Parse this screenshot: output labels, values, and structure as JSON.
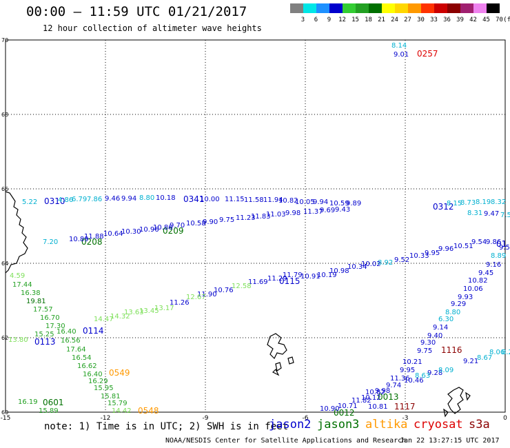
{
  "header": {
    "title": "00:00 – 11:59 UTC 01/21/2017",
    "subtitle": "12 hour collection of altimeter wave heights"
  },
  "legend": {
    "unit": "(ft)",
    "bins": [
      {
        "label": "3",
        "color": "#808080"
      },
      {
        "label": "6",
        "color": "#00e6e6"
      },
      {
        "label": "9",
        "color": "#1e90ff"
      },
      {
        "label": "12",
        "color": "#0000cd"
      },
      {
        "label": "15",
        "color": "#32cd32"
      },
      {
        "label": "18",
        "color": "#22a022"
      },
      {
        "label": "21",
        "color": "#007000"
      },
      {
        "label": "24",
        "color": "#ffff00"
      },
      {
        "label": "27",
        "color": "#ffd700"
      },
      {
        "label": "30",
        "color": "#ff9900"
      },
      {
        "label": "33",
        "color": "#ff3300"
      },
      {
        "label": "36",
        "color": "#cc0000"
      },
      {
        "label": "39",
        "color": "#8b0000"
      },
      {
        "label": "42",
        "color": "#a02070"
      },
      {
        "label": "45",
        "color": "#ee82ee"
      },
      {
        "label": "70",
        "color": "#000000"
      }
    ]
  },
  "axes": {
    "lon_ticks": [
      "-15",
      "-12",
      "-9",
      "-6",
      "-3",
      "0"
    ],
    "lat_ticks": [
      "70",
      "68",
      "66",
      "64",
      "62",
      "60"
    ]
  },
  "track_labels": [
    {
      "id": "t1",
      "text": "0257",
      "color": "#dd0000"
    },
    {
      "id": "t2",
      "text": "0310",
      "color": "#0000cd"
    },
    {
      "id": "t3",
      "text": "0341",
      "color": "#0000cd"
    },
    {
      "id": "t4",
      "text": "0208",
      "color": "#007000"
    },
    {
      "id": "t5",
      "text": "0209",
      "color": "#007000"
    },
    {
      "id": "t6",
      "text": "0115",
      "color": "#0000cd"
    },
    {
      "id": "t7",
      "text": "0114",
      "color": "#0000cd"
    },
    {
      "id": "t8",
      "text": "0113",
      "color": "#0000cd"
    },
    {
      "id": "t9",
      "text": "0549",
      "color": "#ff9900"
    },
    {
      "id": "t10",
      "text": "0548",
      "color": "#ff9900"
    },
    {
      "id": "t11",
      "text": "0601",
      "color": "#007000"
    },
    {
      "id": "t12",
      "text": "0012",
      "color": "#007000"
    },
    {
      "id": "t13",
      "text": "0013",
      "color": "#007000"
    },
    {
      "id": "t14",
      "text": "1116",
      "color": "#8b0000"
    },
    {
      "id": "t15",
      "text": "1117",
      "color": "#8b0000"
    },
    {
      "id": "t16",
      "text": "0312",
      "color": "#0000cd"
    },
    {
      "id": "t17",
      "text": "01",
      "color": "#0000cd"
    }
  ],
  "wave_values": [
    {
      "t": "8.14",
      "c": "#00b0d0"
    },
    {
      "t": "9.01",
      "c": "#0000cd"
    },
    {
      "t": "5.22",
      "c": "#00b0d0"
    },
    {
      "t": "4.86",
      "c": "#00b0d0"
    },
    {
      "t": "6.79",
      "c": "#00b0d0"
    },
    {
      "t": "7.86",
      "c": "#00b0d0"
    },
    {
      "t": "9.46",
      "c": "#0000cd"
    },
    {
      "t": "9.94",
      "c": "#0000cd"
    },
    {
      "t": "8.80",
      "c": "#00b0d0"
    },
    {
      "t": "10.18",
      "c": "#0000cd"
    },
    {
      "t": "10.00",
      "c": "#0000cd"
    },
    {
      "t": "11.15",
      "c": "#0000cd"
    },
    {
      "t": "11.58",
      "c": "#0000cd"
    },
    {
      "t": "11.94",
      "c": "#0000cd"
    },
    {
      "t": "10.82",
      "c": "#0000cd"
    },
    {
      "t": "10.05",
      "c": "#0000cd"
    },
    {
      "t": "9.94",
      "c": "#0000cd"
    },
    {
      "t": "10.59",
      "c": "#0000cd"
    },
    {
      "t": "9.89",
      "c": "#0000cd"
    },
    {
      "t": "8.15",
      "c": "#00b0d0"
    },
    {
      "t": "8.73",
      "c": "#00b0d0"
    },
    {
      "t": "8.19",
      "c": "#00b0d0"
    },
    {
      "t": "8.32",
      "c": "#00b0d0"
    },
    {
      "t": "8.31",
      "c": "#00b0d0"
    },
    {
      "t": "9.47",
      "c": "#0000cd"
    },
    {
      "t": "7.5",
      "c": "#00b0d0"
    },
    {
      "t": "7.20",
      "c": "#00b0d0"
    },
    {
      "t": "10.89",
      "c": "#0000cd"
    },
    {
      "t": "11.88",
      "c": "#0000cd"
    },
    {
      "t": "10.64",
      "c": "#0000cd"
    },
    {
      "t": "10.30",
      "c": "#0000cd"
    },
    {
      "t": "10.96",
      "c": "#0000cd"
    },
    {
      "t": "10.86",
      "c": "#0000cd"
    },
    {
      "t": "9.70",
      "c": "#0000cd"
    },
    {
      "t": "10.58",
      "c": "#0000cd"
    },
    {
      "t": "9.90",
      "c": "#0000cd"
    },
    {
      "t": "9.75",
      "c": "#0000cd"
    },
    {
      "t": "11.23",
      "c": "#0000cd"
    },
    {
      "t": "11.83",
      "c": "#0000cd"
    },
    {
      "t": "11.03",
      "c": "#0000cd"
    },
    {
      "t": "9.98",
      "c": "#0000cd"
    },
    {
      "t": "11.37",
      "c": "#0000cd"
    },
    {
      "t": "9.69",
      "c": "#0000cd"
    },
    {
      "t": "9.43",
      "c": "#0000cd"
    },
    {
      "t": "9.86",
      "c": "#0000cd"
    },
    {
      "t": "9.5",
      "c": "#0000cd"
    },
    {
      "t": "8.89",
      "c": "#00b0d0"
    },
    {
      "t": "9.16",
      "c": "#0000cd"
    },
    {
      "t": "9.45",
      "c": "#0000cd"
    },
    {
      "t": "10.82",
      "c": "#0000cd"
    },
    {
      "t": "10.06",
      "c": "#0000cd"
    },
    {
      "t": "9.93",
      "c": "#0000cd"
    },
    {
      "t": "9.29",
      "c": "#0000cd"
    },
    {
      "t": "8.80",
      "c": "#00b0d0"
    },
    {
      "t": "6.30",
      "c": "#00b0d0"
    },
    {
      "t": "9.14",
      "c": "#0000cd"
    },
    {
      "t": "9.40",
      "c": "#0000cd"
    },
    {
      "t": "9.30",
      "c": "#0000cd"
    },
    {
      "t": "9.75",
      "c": "#0000cd"
    },
    {
      "t": "9.54",
      "c": "#0000cd"
    },
    {
      "t": "10.51",
      "c": "#0000cd"
    },
    {
      "t": "9.96",
      "c": "#0000cd"
    },
    {
      "t": "9.95",
      "c": "#0000cd"
    },
    {
      "t": "10.33",
      "c": "#0000cd"
    },
    {
      "t": "9.52",
      "c": "#0000cd"
    },
    {
      "t": "8.92",
      "c": "#00b0d0"
    },
    {
      "t": "10.02",
      "c": "#0000cd"
    },
    {
      "t": "10.34",
      "c": "#0000cd"
    },
    {
      "t": "10.98",
      "c": "#0000cd"
    },
    {
      "t": "10.19",
      "c": "#0000cd"
    },
    {
      "t": "10.91",
      "c": "#0000cd"
    },
    {
      "t": "11.79",
      "c": "#0000cd"
    },
    {
      "t": "11.29",
      "c": "#0000cd"
    },
    {
      "t": "11.69",
      "c": "#0000cd"
    },
    {
      "t": "12.58",
      "c": "#7ee05a"
    },
    {
      "t": "10.76",
      "c": "#0000cd"
    },
    {
      "t": "11.90",
      "c": "#0000cd"
    },
    {
      "t": "12.67",
      "c": "#7ee05a"
    },
    {
      "t": "11.26",
      "c": "#0000cd"
    },
    {
      "t": "13.17",
      "c": "#7ee05a"
    },
    {
      "t": "13.45",
      "c": "#7ee05a"
    },
    {
      "t": "13.63",
      "c": "#7ee05a"
    },
    {
      "t": "14.32",
      "c": "#7ee05a"
    },
    {
      "t": "14.47",
      "c": "#7ee05a"
    },
    {
      "t": "4.59",
      "c": "#7ee05a"
    },
    {
      "t": "17.44",
      "c": "#22a022"
    },
    {
      "t": "16.38",
      "c": "#22a022"
    },
    {
      "t": "19.81",
      "c": "#007000"
    },
    {
      "t": "17.57",
      "c": "#22a022"
    },
    {
      "t": "16.70",
      "c": "#22a022"
    },
    {
      "t": "17.30",
      "c": "#22a022"
    },
    {
      "t": "16.40",
      "c": "#22a022"
    },
    {
      "t": "15.25",
      "c": "#22a022"
    },
    {
      "t": "13.80",
      "c": "#7ee05a"
    },
    {
      "t": "16.56",
      "c": "#22a022"
    },
    {
      "t": "17.64",
      "c": "#22a022"
    },
    {
      "t": "16.54",
      "c": "#22a022"
    },
    {
      "t": "16.62",
      "c": "#22a022"
    },
    {
      "t": "16.40",
      "c": "#22a022"
    },
    {
      "t": "16.29",
      "c": "#22a022"
    },
    {
      "t": "15.95",
      "c": "#22a022"
    },
    {
      "t": "15.81",
      "c": "#22a022"
    },
    {
      "t": "15.79",
      "c": "#22a022"
    },
    {
      "t": "14.42",
      "c": "#7ee05a"
    },
    {
      "t": "16.19",
      "c": "#22a022"
    },
    {
      "t": "15.89",
      "c": "#22a022"
    },
    {
      "t": "10.21",
      "c": "#0000cd"
    },
    {
      "t": "9.95",
      "c": "#0000cd"
    },
    {
      "t": "11.36",
      "c": "#0000cd"
    },
    {
      "t": "10.46",
      "c": "#0000cd"
    },
    {
      "t": "9.28",
      "c": "#0000cd"
    },
    {
      "t": "8.09",
      "c": "#00b0d0"
    },
    {
      "t": "8.63",
      "c": "#00b0d0"
    },
    {
      "t": "9.21",
      "c": "#0000cd"
    },
    {
      "t": "8.67",
      "c": "#00b0d0"
    },
    {
      "t": "8.06",
      "c": "#00b0d0"
    },
    {
      "t": "8.2",
      "c": "#00b0d0"
    },
    {
      "t": "10.82",
      "c": "#0000cd"
    },
    {
      "t": "10.12",
      "c": "#0000cd"
    },
    {
      "t": "10.81",
      "c": "#0000cd"
    },
    {
      "t": "11.82",
      "c": "#0000cd"
    },
    {
      "t": "10.71",
      "c": "#0000cd"
    },
    {
      "t": "10.90",
      "c": "#0000cd"
    },
    {
      "t": "9.98",
      "c": "#0000cd"
    },
    {
      "t": "9.74",
      "c": "#0000cd"
    }
  ],
  "footer": {
    "note": "note: 1) Time is in UTC; 2) SWH is in feet",
    "satellites": [
      {
        "name": "jason2",
        "color": "#0000cd"
      },
      {
        "name": "jason3",
        "color": "#007000"
      },
      {
        "name": "altika",
        "color": "#ff9900"
      },
      {
        "name": "cryosat",
        "color": "#dd0000"
      },
      {
        "name": "s3a",
        "color": "#8b0000"
      }
    ],
    "credit": "NOAA/NESDIS Center for Satellite Applications and Research",
    "timestamp": "Jan 22 13:27:15 UTC 2017"
  }
}
